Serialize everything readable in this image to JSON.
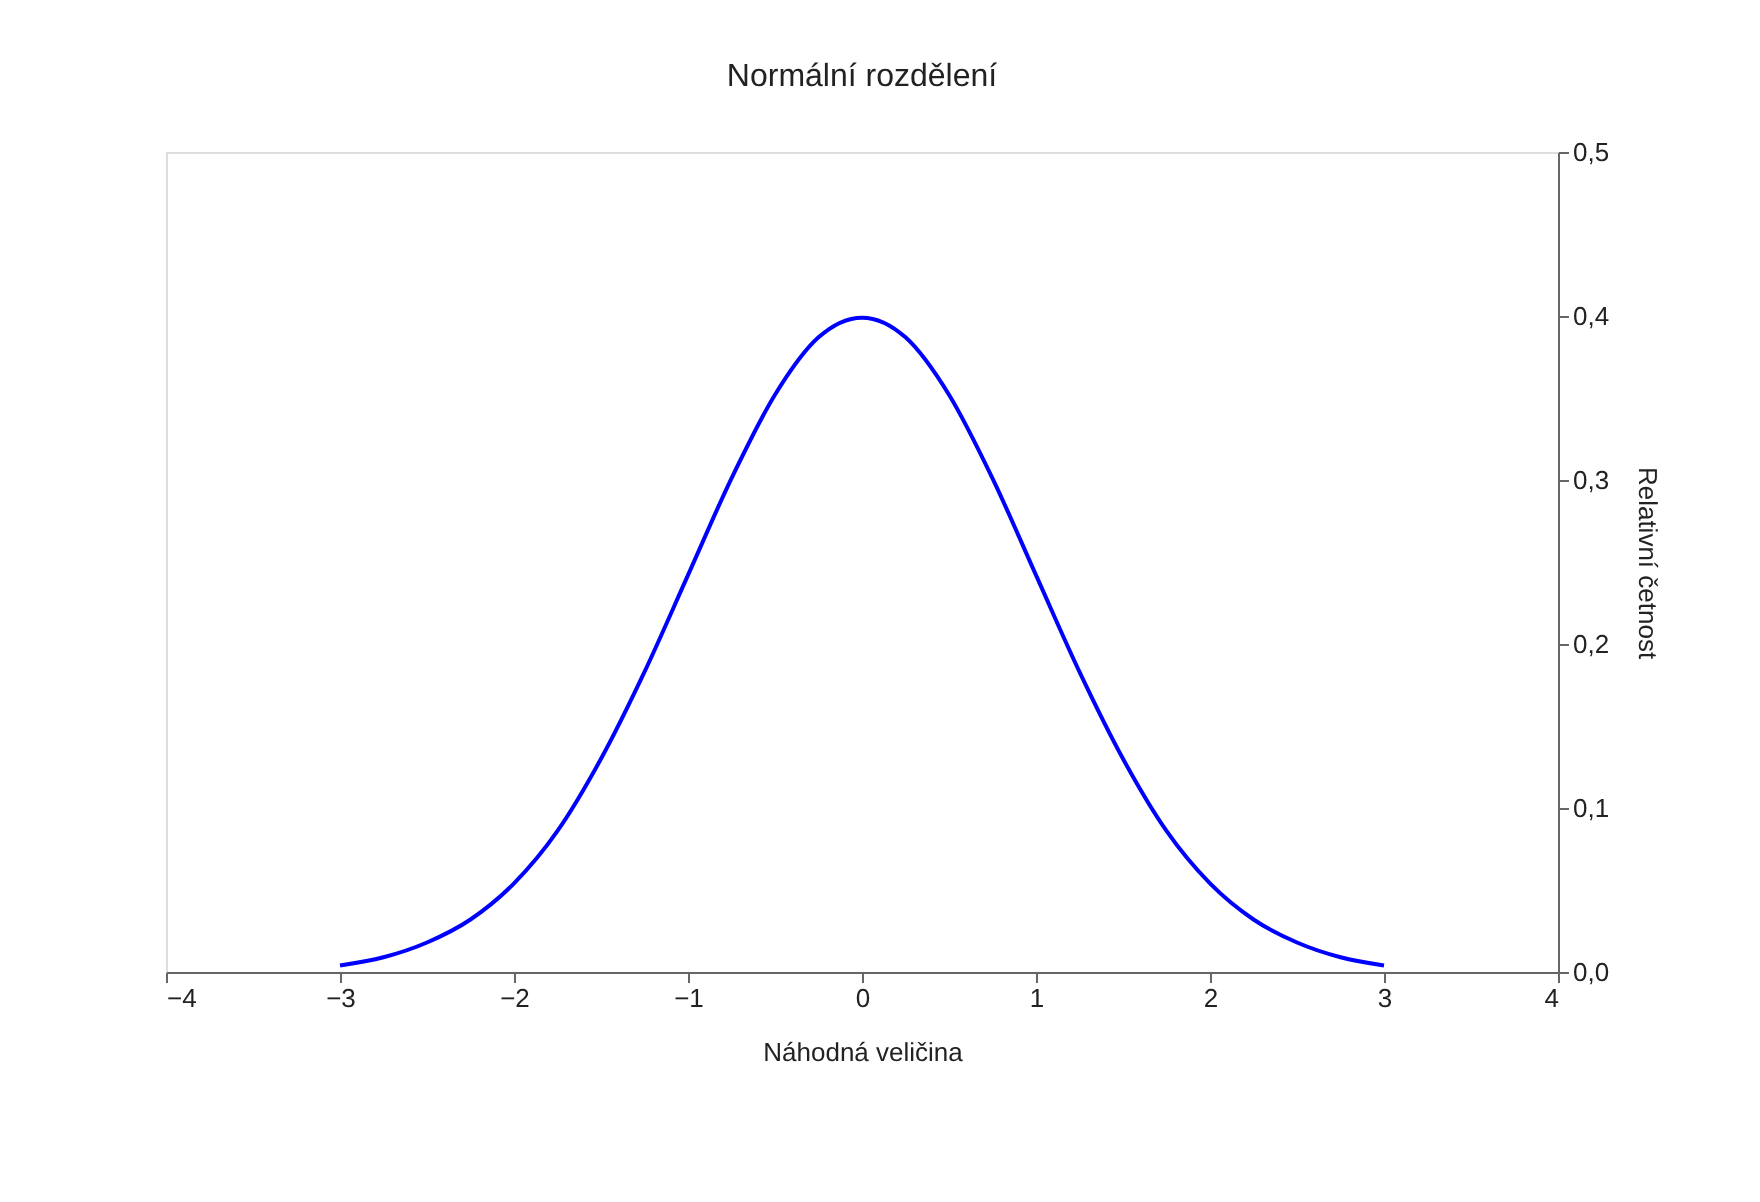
{
  "chart_data": {
    "type": "line",
    "title": "Normální rozdělení",
    "xlabel": "Náhodná veličina",
    "ylabel": "Relativní četnost",
    "x": [
      -3,
      -2.75,
      -2.5,
      -2.25,
      -2,
      -1.75,
      -1.5,
      -1.25,
      -1,
      -0.75,
      -0.5,
      -0.25,
      0,
      0.25,
      0.5,
      0.75,
      1,
      1.25,
      1.5,
      1.75,
      2,
      2.25,
      2.5,
      2.75,
      3
    ],
    "series": [
      {
        "color": "#0000ff",
        "values": [
          0.004,
          0.009,
          0.018,
          0.032,
          0.054,
          0.086,
          0.13,
          0.183,
          0.242,
          0.301,
          0.352,
          0.387,
          0.399,
          0.387,
          0.352,
          0.301,
          0.242,
          0.183,
          0.13,
          0.086,
          0.054,
          0.032,
          0.018,
          0.009,
          0.004
        ]
      }
    ],
    "xlim": [
      -4,
      4
    ],
    "xticks": [
      -4,
      -3,
      -2,
      -1,
      0,
      1,
      2,
      3,
      4
    ],
    "ylim": [
      0,
      0.5
    ],
    "yticks": [
      {
        "value": 0,
        "label": "0,0"
      },
      {
        "value": 0.1,
        "label": "0,1"
      },
      {
        "value": 0.2,
        "label": "0,2"
      },
      {
        "value": 0.3,
        "label": "0,3"
      },
      {
        "value": 0.4,
        "label": "0,4"
      },
      {
        "value": 0.5,
        "label": "0,5"
      }
    ],
    "grid": false,
    "marker": "none",
    "line_style": "solid"
  }
}
